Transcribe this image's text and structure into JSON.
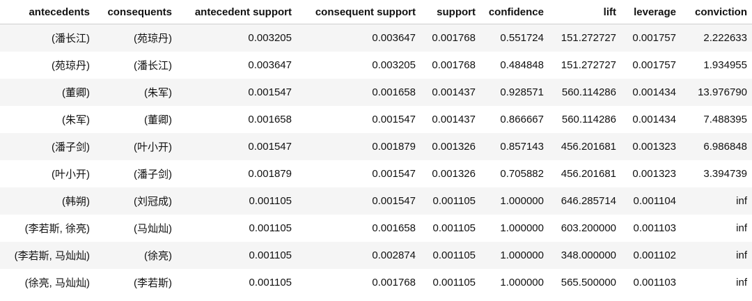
{
  "table": {
    "columns": [
      "antecedents",
      "consequents",
      "antecedent support",
      "consequent support",
      "support",
      "confidence",
      "lift",
      "leverage",
      "conviction"
    ],
    "rows": [
      [
        "(潘长江)",
        "(苑琼丹)",
        "0.003205",
        "0.003647",
        "0.001768",
        "0.551724",
        "151.272727",
        "0.001757",
        "2.222633"
      ],
      [
        "(苑琼丹)",
        "(潘长江)",
        "0.003647",
        "0.003205",
        "0.001768",
        "0.484848",
        "151.272727",
        "0.001757",
        "1.934955"
      ],
      [
        "(董卿)",
        "(朱军)",
        "0.001547",
        "0.001658",
        "0.001437",
        "0.928571",
        "560.114286",
        "0.001434",
        "13.976790"
      ],
      [
        "(朱军)",
        "(董卿)",
        "0.001658",
        "0.001547",
        "0.001437",
        "0.866667",
        "560.114286",
        "0.001434",
        "7.488395"
      ],
      [
        "(潘子剑)",
        "(叶小开)",
        "0.001547",
        "0.001879",
        "0.001326",
        "0.857143",
        "456.201681",
        "0.001323",
        "6.986848"
      ],
      [
        "(叶小开)",
        "(潘子剑)",
        "0.001879",
        "0.001547",
        "0.001326",
        "0.705882",
        "456.201681",
        "0.001323",
        "3.394739"
      ],
      [
        "(韩朔)",
        "(刘冠成)",
        "0.001105",
        "0.001547",
        "0.001105",
        "1.000000",
        "646.285714",
        "0.001104",
        "inf"
      ],
      [
        "(李若斯, 徐亮)",
        "(马灿灿)",
        "0.001105",
        "0.001658",
        "0.001105",
        "1.000000",
        "603.200000",
        "0.001103",
        "inf"
      ],
      [
        "(李若斯, 马灿灿)",
        "(徐亮)",
        "0.001105",
        "0.002874",
        "0.001105",
        "1.000000",
        "348.000000",
        "0.001102",
        "inf"
      ],
      [
        "(徐亮, 马灿灿)",
        "(李若斯)",
        "0.001105",
        "0.001768",
        "0.001105",
        "1.000000",
        "565.500000",
        "0.001103",
        "inf"
      ]
    ]
  },
  "colors": {
    "stripe": "#f5f5f5",
    "header_rule": "#cfcfcf",
    "text": "#111111"
  }
}
